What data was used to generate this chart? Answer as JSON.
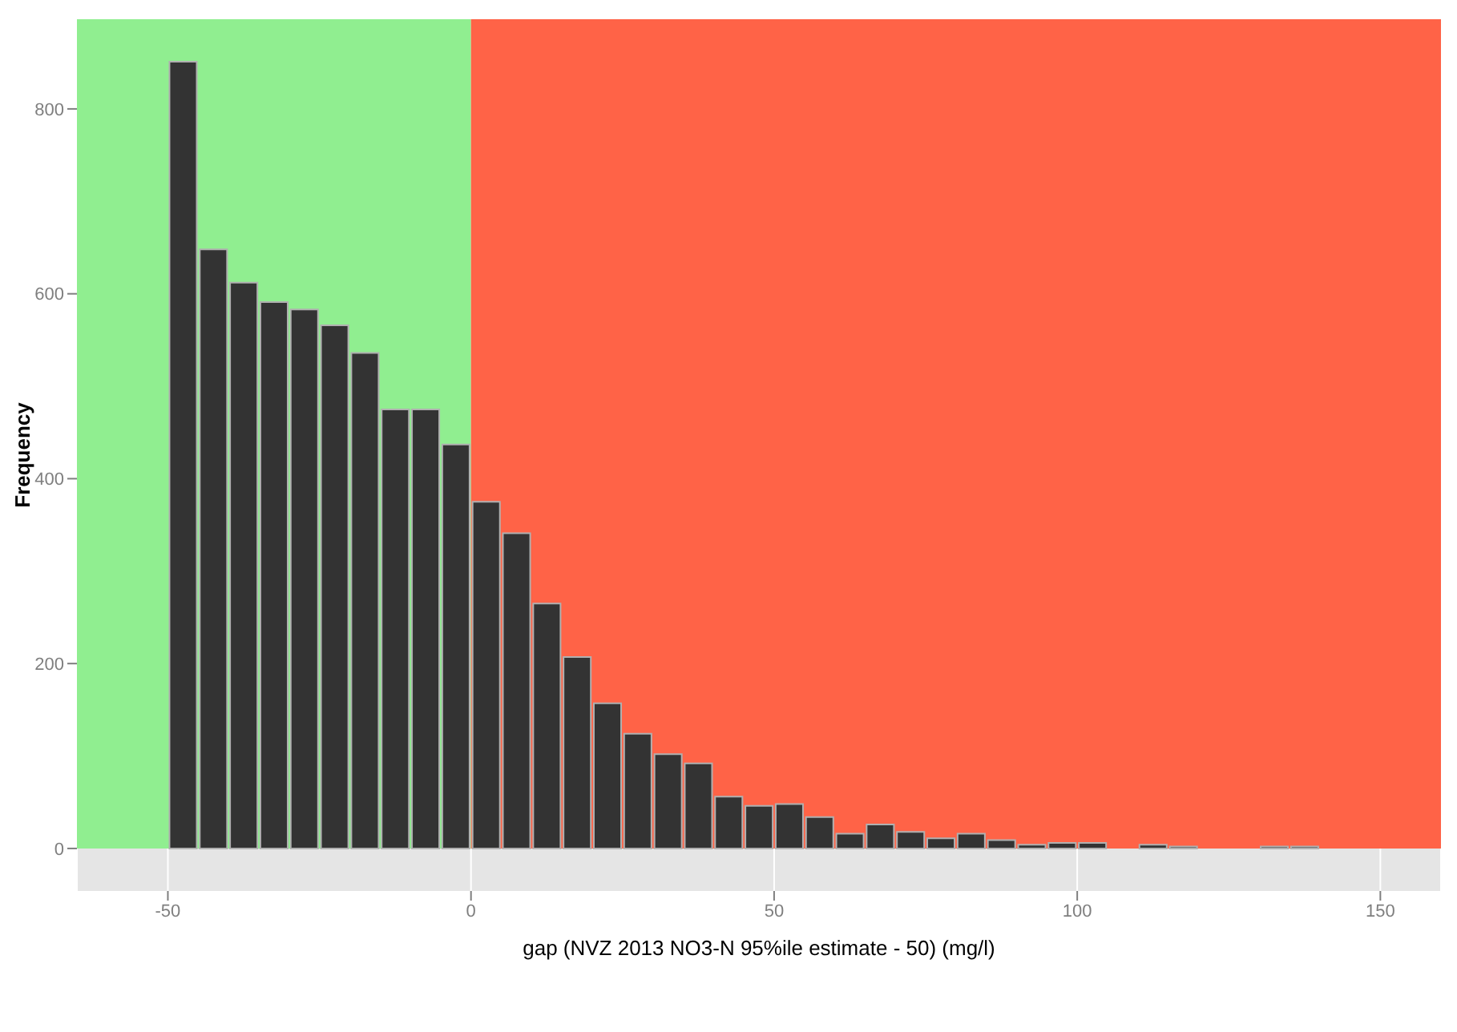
{
  "chart_data": {
    "type": "histogram",
    "xlabel": "gap (NVZ 2013 NO3-N 95%ile estimate - 50) (mg/l)",
    "ylabel": "Frequency",
    "bins": [
      -50,
      -45,
      -40,
      -35,
      -30,
      -25,
      -20,
      -15,
      -10,
      -5,
      0,
      5,
      10,
      15,
      20,
      25,
      30,
      35,
      40,
      45,
      50,
      55,
      60,
      65,
      70,
      75,
      80,
      85,
      90,
      95,
      100,
      105,
      110,
      115,
      120,
      125,
      130,
      135,
      140,
      145,
      150
    ],
    "values": [
      851,
      648,
      612,
      591,
      583,
      566,
      536,
      475,
      475,
      437,
      375,
      341,
      265,
      207,
      157,
      124,
      102,
      92,
      56,
      46,
      48,
      34,
      16,
      26,
      18,
      11,
      16,
      9,
      4,
      6,
      6,
      0,
      4,
      2,
      0,
      0,
      2,
      2,
      0,
      0
    ],
    "color": "#333333",
    "xlim": [
      -65,
      160
    ],
    "xticks": [
      -50,
      0,
      50,
      100,
      150
    ],
    "ylim": [
      -46,
      897
    ],
    "yticks": [
      0,
      200,
      400,
      600,
      800
    ],
    "bands": [
      {
        "axis": "x",
        "from": -65,
        "to": 0,
        "color": "#90ee90"
      },
      {
        "axis": "x",
        "from": 0,
        "to": 160,
        "color": "#ff6347"
      }
    ],
    "grid": "x"
  }
}
